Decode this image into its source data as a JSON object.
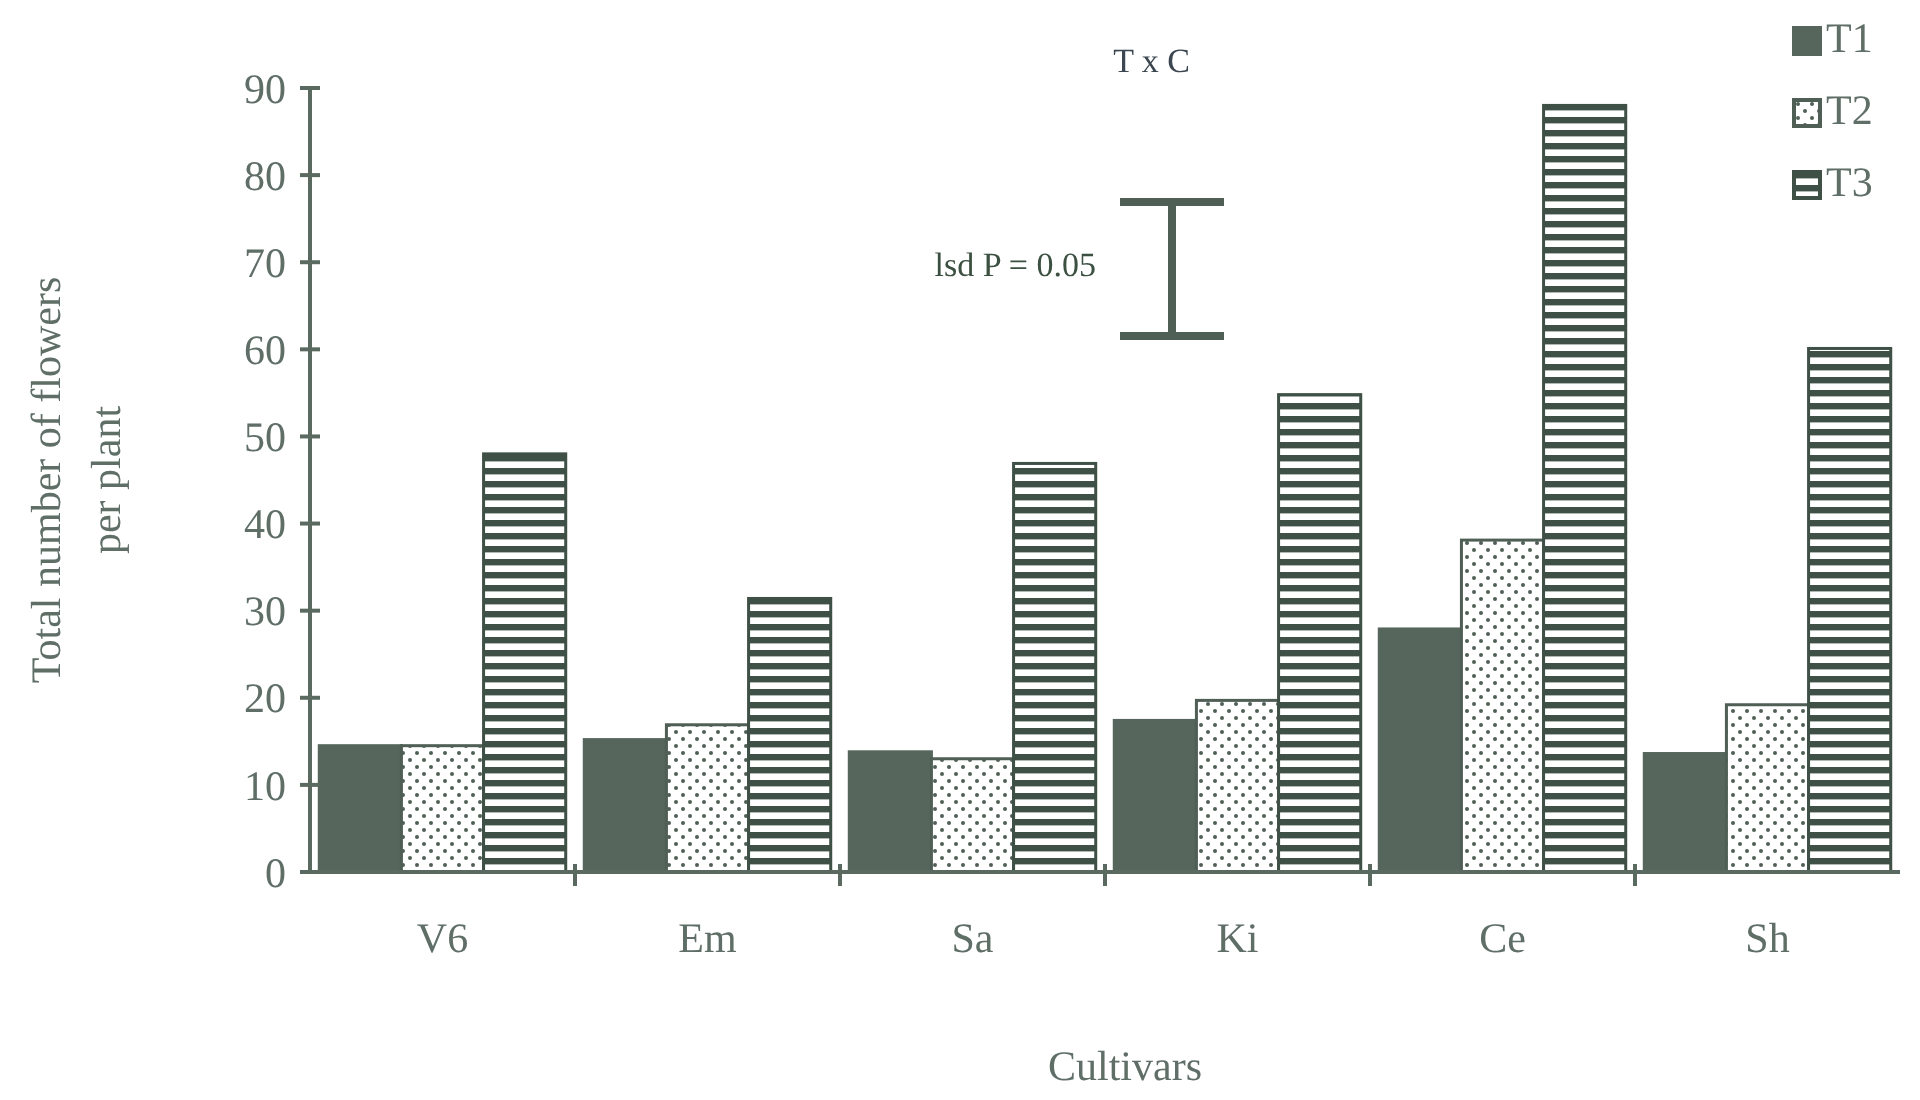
{
  "chart_data": {
    "type": "bar",
    "xlabel": "Cultivars",
    "ylabel": "Total number of  flowers\nper plant",
    "categories": [
      "V6",
      "Em",
      "Sa",
      "Ki",
      "Ce",
      "Sh"
    ],
    "series": [
      {
        "name": "T1",
        "color": "#56665c",
        "values": [
          14.5,
          15.2,
          13.8,
          17.4,
          27.9,
          13.6
        ]
      },
      {
        "name": "T2",
        "color": "#4f5f55",
        "values": [
          14.5,
          16.9,
          13,
          19.7,
          38.1,
          19.2
        ]
      },
      {
        "name": "T3",
        "color": "#3f5046",
        "values": [
          48,
          31.4,
          46.9,
          54.8,
          88,
          60.1
        ]
      }
    ],
    "ylim": [
      0,
      90
    ],
    "yticks": [
      0,
      10,
      20,
      30,
      40,
      50,
      60,
      70,
      80,
      90
    ],
    "grid": false,
    "legend": "top right",
    "annotations": [
      "T x C",
      "lsd P = 0.05"
    ]
  }
}
